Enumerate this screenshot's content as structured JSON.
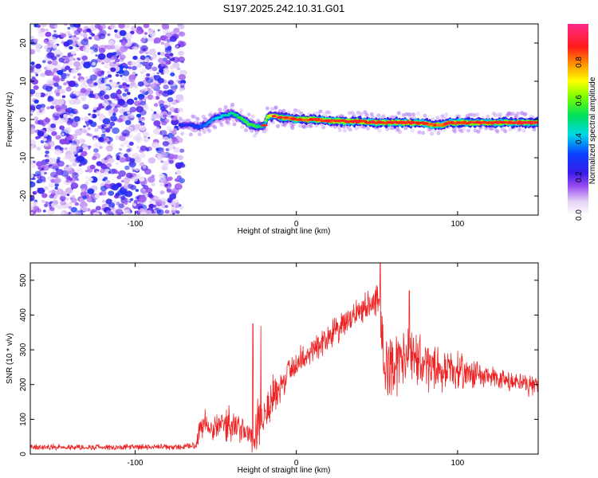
{
  "title": "S197.2025.242.10.31.G01",
  "chart_data": [
    {
      "type": "heatmap",
      "xlabel": "Height of straight line (km)",
      "ylabel": "Frequency (Hz)",
      "xlim": [
        -165,
        150
      ],
      "ylim": [
        -25,
        25
      ],
      "xticks": [
        -100,
        0,
        100
      ],
      "yticks": [
        -20,
        -10,
        0,
        10,
        20
      ],
      "noise_region": {
        "x_range": [
          -165,
          -70
        ],
        "y_range": [
          -25,
          25
        ],
        "amplitude_range": [
          0.05,
          0.3
        ]
      },
      "ridge": {
        "x": [
          -72,
          -65,
          -60,
          -55,
          -50,
          -45,
          -40,
          -35,
          -30,
          -25,
          -20,
          -18,
          -15,
          -10,
          -5,
          0,
          10,
          20,
          30,
          40,
          50,
          60,
          70,
          80,
          85,
          90,
          95,
          100,
          110,
          120,
          130,
          140,
          150
        ],
        "y": [
          -1.5,
          -1.5,
          -2.0,
          -1.0,
          0.5,
          1.0,
          1.5,
          0.5,
          -1.0,
          -2.0,
          -1.5,
          0.5,
          1.0,
          0.5,
          0.5,
          0.0,
          0.0,
          -0.3,
          -0.5,
          -0.5,
          -0.8,
          -0.8,
          -0.8,
          -1.0,
          -1.5,
          -1.5,
          -0.8,
          -0.8,
          -0.8,
          -0.8,
          -0.8,
          -0.8,
          -0.8
        ],
        "amplitude": [
          0.3,
          0.3,
          0.35,
          0.4,
          0.45,
          0.5,
          0.5,
          0.6,
          0.65,
          0.6,
          0.55,
          0.7,
          0.8,
          0.85,
          0.9,
          0.9,
          0.95,
          0.95,
          0.95,
          0.95,
          0.95,
          0.95,
          0.95,
          0.95,
          0.9,
          0.9,
          0.95,
          0.95,
          0.95,
          0.95,
          0.95,
          0.95,
          0.95
        ]
      },
      "colorbar": {
        "label": "Normalized spectral amplitude",
        "range": [
          0.0,
          1.0
        ],
        "ticks": [
          0.0,
          0.2,
          0.4,
          0.6,
          0.8
        ]
      }
    },
    {
      "type": "line",
      "series": [
        {
          "name": "SNR",
          "color": "#ee2222"
        }
      ],
      "xlabel": "Height of straight line (km)",
      "ylabel": "SNR (10 * v/v)",
      "xlim": [
        -165,
        150
      ],
      "ylim": [
        0,
        550
      ],
      "xticks": [
        -100,
        0,
        100
      ],
      "yticks": [
        0,
        100,
        200,
        300,
        400,
        500
      ],
      "envelope": {
        "x": [
          -165,
          -130,
          -100,
          -70,
          -62,
          -60,
          -55,
          -50,
          -45,
          -40,
          -35,
          -30,
          -27,
          -26,
          -25,
          -20,
          -15,
          -10,
          -5,
          0,
          10,
          20,
          30,
          40,
          45,
          48,
          50,
          52,
          55,
          60,
          70,
          80,
          90,
          100,
          110,
          120,
          130,
          140,
          150
        ],
        "base": [
          20,
          20,
          20,
          20,
          25,
          80,
          90,
          80,
          90,
          80,
          70,
          60,
          50,
          30,
          100,
          120,
          160,
          180,
          240,
          260,
          300,
          340,
          370,
          420,
          430,
          440,
          460,
          400,
          240,
          260,
          280,
          260,
          240,
          240,
          230,
          220,
          210,
          200,
          200
        ],
        "amp": [
          10,
          10,
          10,
          10,
          15,
          50,
          60,
          50,
          60,
          60,
          50,
          40,
          60,
          40,
          120,
          120,
          80,
          60,
          50,
          50,
          50,
          50,
          50,
          50,
          50,
          60,
          90,
          80,
          120,
          110,
          100,
          90,
          70,
          60,
          50,
          40,
          40,
          40,
          30
        ]
      },
      "spikes": [
        {
          "x": -27,
          "y": 375
        },
        {
          "x": -22,
          "y": 368
        },
        {
          "x": -27.5,
          "y": 5
        },
        {
          "x": 52,
          "y": 550
        },
        {
          "x": 70,
          "y": 470
        }
      ]
    }
  ]
}
